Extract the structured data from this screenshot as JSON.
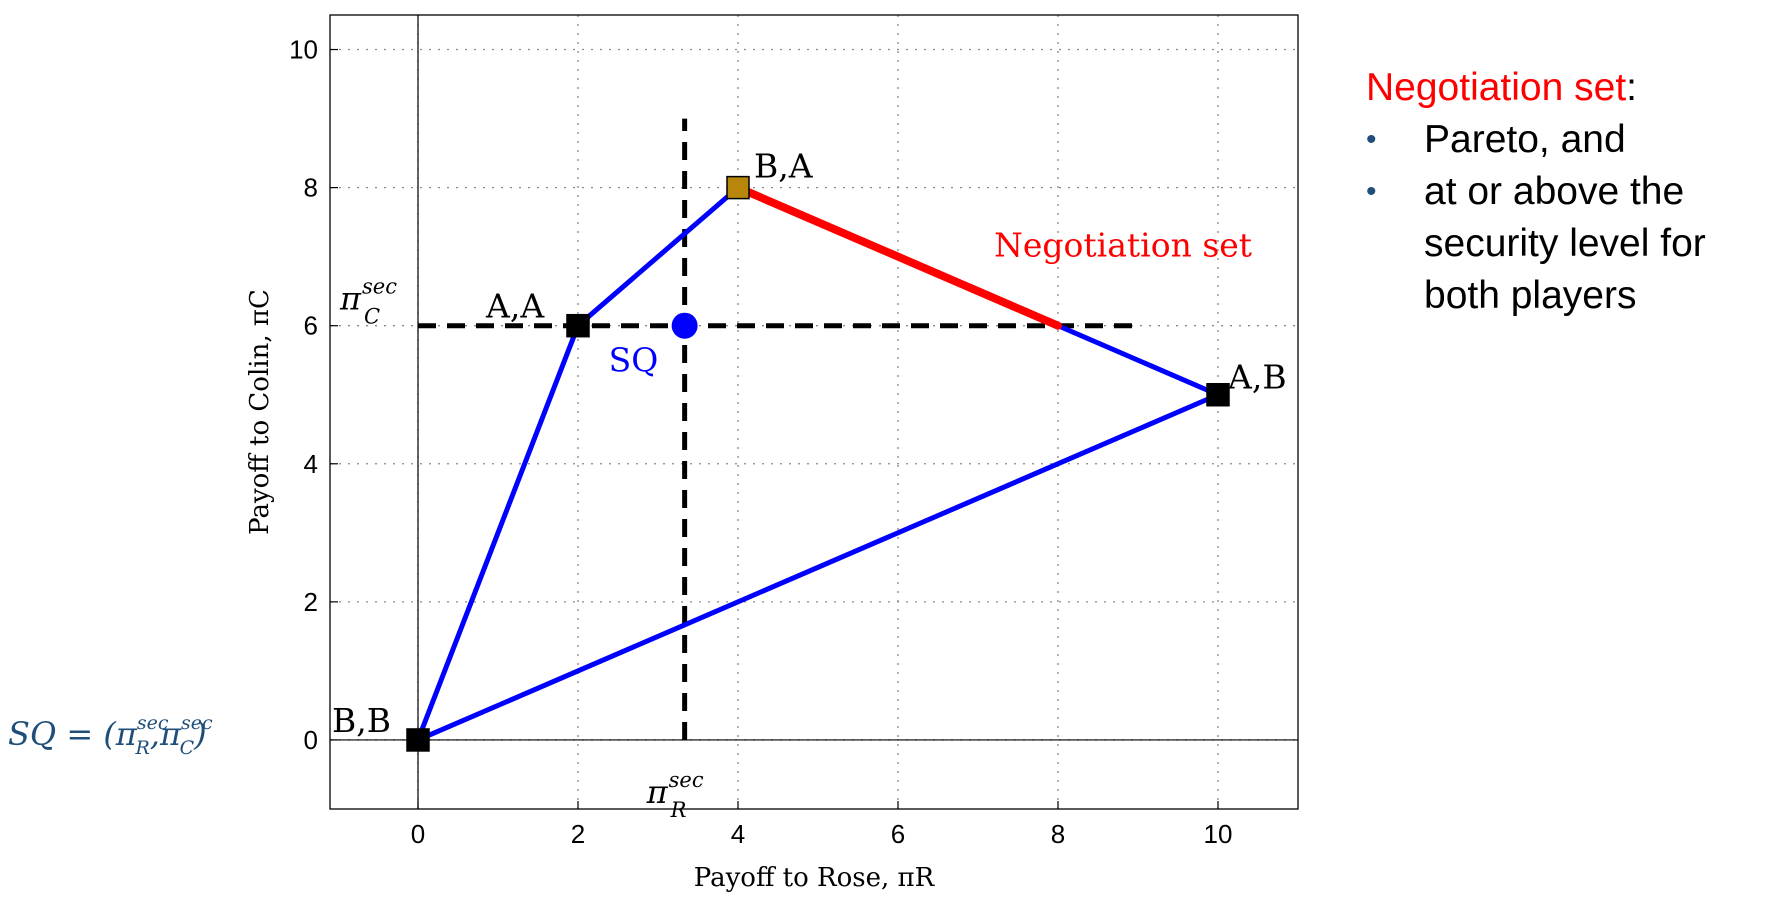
{
  "chart_data": {
    "type": "scatter",
    "xlabel": "Payoff to Rose, πR",
    "ylabel": "Payoff to Colin, πC",
    "xlim": [
      -1.1,
      11
    ],
    "ylim": [
      -1,
      10.5
    ],
    "xticks": [
      0,
      2,
      4,
      6,
      8,
      10
    ],
    "yticks": [
      0,
      2,
      4,
      6,
      8,
      10
    ],
    "grid": "dotted",
    "points": [
      {
        "label": "B,B",
        "x": 0,
        "y": 0,
        "color": "#000000"
      },
      {
        "label": "A,A",
        "x": 2,
        "y": 6,
        "color": "#000000"
      },
      {
        "label": "B,A",
        "x": 4,
        "y": 8,
        "color": "#b8860b"
      },
      {
        "label": "A,B",
        "x": 10,
        "y": 5,
        "color": "#000000"
      }
    ],
    "polygon": {
      "vertices": [
        [
          0,
          0
        ],
        [
          2,
          6
        ],
        [
          4,
          8
        ],
        [
          10,
          5
        ],
        [
          0,
          0
        ]
      ],
      "color": "#0000ff"
    },
    "negotiation_set": {
      "label": "Negotiation set",
      "from": [
        4,
        8
      ],
      "to": [
        8,
        6
      ],
      "color": "#ff0000"
    },
    "status_quo": {
      "label": "SQ",
      "x": 3.333,
      "y": 6,
      "color": "#0000ff"
    },
    "security_lines": {
      "vertical": {
        "x": 3.333,
        "y_from": 0,
        "y_to": 9,
        "label": "π",
        "label_sup": "sec",
        "label_sub": "R"
      },
      "horizontal": {
        "y": 6,
        "x_from": 0,
        "x_to": 9,
        "label": "π",
        "label_sup": "sec",
        "label_sub": "C"
      }
    }
  },
  "side_panel": {
    "title_red": "Negotiation set",
    "title_rest": ":",
    "bullets": [
      "Pareto, and",
      "at or above the security level for both players"
    ],
    "bullet_glyph": "•"
  },
  "formula": {
    "text_left": "SQ = (π",
    "r_sup": "sec",
    "r_sub": "R",
    "mid": ",π",
    "c_sup": "sec",
    "c_sub": "C",
    "text_right": ")"
  }
}
